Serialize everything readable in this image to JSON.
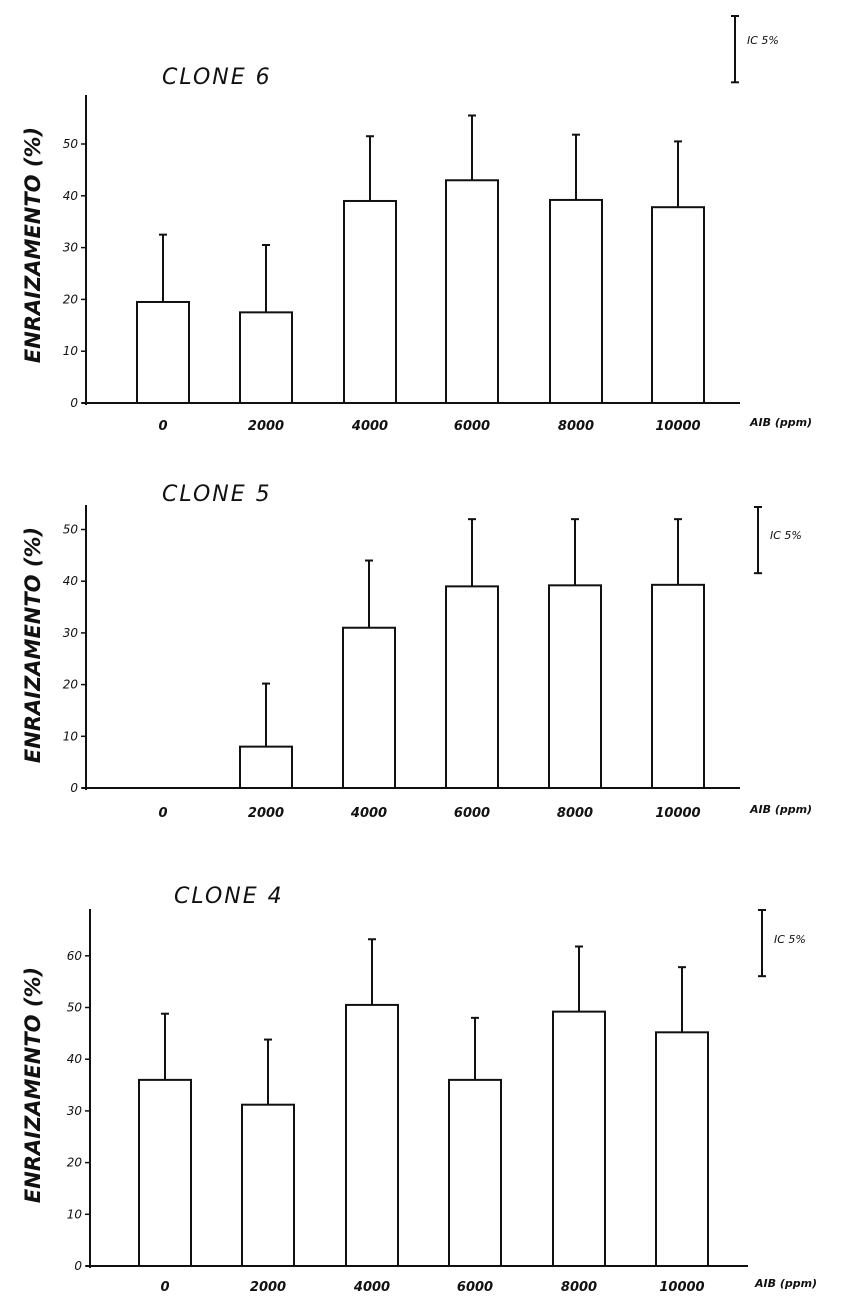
{
  "chart_data": [
    {
      "type": "bar",
      "title": "CLONE 6",
      "ylabel": "ENRAIZAMENTO (%)",
      "xlabel": "AIB (ppm)",
      "ci_label": "IC 5%",
      "categories": [
        "0",
        "2000",
        "4000",
        "6000",
        "8000",
        "10000"
      ],
      "values": [
        19.5,
        17.5,
        39,
        43,
        39.2,
        37.8
      ],
      "error_upper": [
        32.5,
        30.5,
        51.5,
        55.5,
        51.8,
        50.5
      ],
      "ci_bar": 12.8,
      "ylim": [
        0,
        57
      ],
      "yticks": [
        0,
        10,
        20,
        30,
        40,
        50
      ],
      "ytick_labels": [
        "0",
        "10",
        "20",
        "30",
        "40",
        "50"
      ],
      "grid": false
    },
    {
      "type": "bar",
      "title": "CLONE 5",
      "ylabel": "ENRAIZAMENTO (%)",
      "xlabel": "AIB (ppm)",
      "ci_label": "IC 5%",
      "categories": [
        "0",
        "2000",
        "4000",
        "6000",
        "8000",
        "10000"
      ],
      "values": [
        0,
        8,
        31,
        39,
        39.2,
        39.3
      ],
      "error_upper": [
        null,
        20.2,
        44,
        52,
        52,
        52
      ],
      "ci_bar": 12.8,
      "ylim": [
        0,
        53
      ],
      "yticks": [
        0,
        10,
        20,
        30,
        40,
        50
      ],
      "ytick_labels": [
        "0",
        "10",
        "20",
        "30",
        "40",
        "50"
      ],
      "grid": false
    },
    {
      "type": "bar",
      "title": "CLONE 4",
      "ylabel": "ENRAIZAMENTO (%)",
      "xlabel": "AIB (ppm)",
      "ci_label": "IC 5%",
      "categories": [
        "0",
        "2000",
        "4000",
        "6000",
        "8000",
        "10000"
      ],
      "values": [
        36,
        31.2,
        50.5,
        36,
        49.2,
        45.2
      ],
      "error_upper": [
        48.8,
        43.8,
        63.2,
        48,
        61.8,
        57.8
      ],
      "ci_bar": 12.8,
      "ylim": [
        0,
        70
      ],
      "yticks": [
        0,
        10,
        20,
        30,
        40,
        50,
        60
      ],
      "ytick_labels": [
        "0",
        "10",
        "20",
        "30",
        "40",
        "50",
        "60"
      ],
      "grid": false
    }
  ]
}
